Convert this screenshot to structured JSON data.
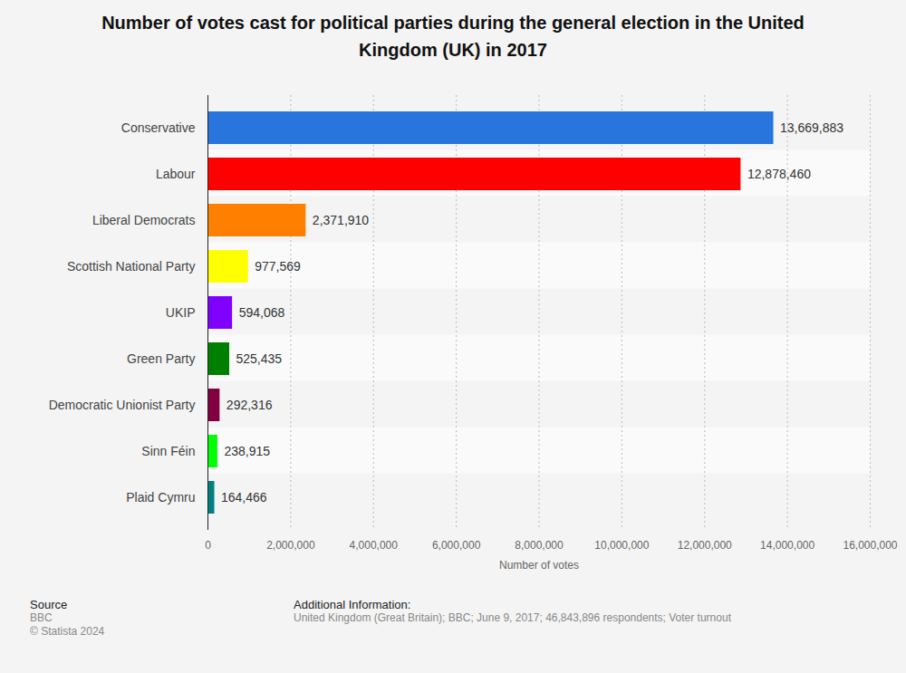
{
  "chart_data": {
    "type": "bar",
    "orientation": "horizontal",
    "title": "Number of votes cast for political parties during the general election in the United Kingdom (UK) in 2017",
    "xlabel": "Number of votes",
    "categories": [
      "Conservative",
      "Labour",
      "Liberal Democrats",
      "Scottish National Party",
      "UKIP",
      "Green Party",
      "Democratic Unionist Party",
      "Sinn Féin",
      "Plaid Cymru"
    ],
    "values": [
      13669883,
      12878460,
      2371910,
      977569,
      594068,
      525435,
      292316,
      238915,
      164466
    ],
    "value_labels": [
      "13,669,883",
      "12,878,460",
      "2,371,910",
      "977,569",
      "594,068",
      "525,435",
      "292,316",
      "238,915",
      "164,466"
    ],
    "colors": [
      "#2876dd",
      "#ff0000",
      "#ff8000",
      "#ffff00",
      "#8000ff",
      "#008000",
      "#800040",
      "#00ff00",
      "#008080"
    ],
    "xlim": [
      0,
      16000000
    ],
    "xticks": [
      0,
      {
        "value": 2000000,
        "label": "2,000,000"
      },
      {
        "value": 4000000,
        "label": "4,000,000"
      },
      {
        "value": 6000000,
        "label": "6,000,000"
      },
      {
        "value": 8000000,
        "label": "8,000,000"
      },
      {
        "value": 10000000,
        "label": "10,000,000"
      },
      {
        "value": 12000000,
        "label": "12,000,000"
      },
      {
        "value": 14000000,
        "label": "14,000,000"
      },
      {
        "value": 16000000,
        "label": "16,000,000"
      }
    ],
    "grid": true,
    "data_labels": true,
    "annotations": [
      "Source",
      "BBC",
      "© Statista 2024",
      "Additional Information:",
      "United Kingdom (Great Britain); BBC; June 9, 2017; 46,843,896 respondents; Voter turnout"
    ]
  }
}
